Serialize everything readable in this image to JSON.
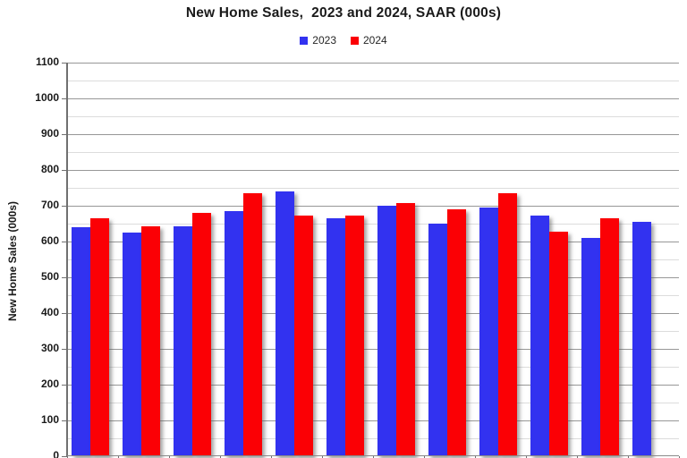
{
  "title": "New Home Sales,  2023 and 2024, SAAR (000s)",
  "legend": {
    "items": [
      {
        "label": "2023",
        "color": "#3232F0"
      },
      {
        "label": "2024",
        "color": "#FB0005"
      }
    ]
  },
  "y_axis": {
    "label": "New Home Sales (000s)",
    "tick_values": [
      0,
      100,
      200,
      300,
      400,
      500,
      600,
      700,
      800,
      900,
      1000,
      1100
    ]
  },
  "x_axis": {
    "tick_labels_visible": false,
    "boundary_tick_count": 13
  },
  "chart_data": {
    "type": "bar",
    "title": "New Home Sales,  2023 and 2024, SAAR (000s)",
    "xlabel": "",
    "ylabel": "New Home Sales (000s)",
    "ylim": [
      0,
      1100
    ],
    "y_major_step": 100,
    "y_minor_step": 50,
    "grid": "horizontal, major and minor",
    "legend_position": "top-center",
    "group_count": 12,
    "series": [
      {
        "name": "2023",
        "color": "#3232F0",
        "values": [
          640,
          624,
          643,
          686,
          741,
          666,
          699,
          650,
          694,
          672,
          611,
          654
        ]
      },
      {
        "name": "2024",
        "color": "#FB0005",
        "values": [
          664,
          643,
          681,
          735,
          672,
          673,
          707,
          690,
          735,
          627,
          665,
          null
        ]
      }
    ],
    "colors": {
      "major_gridline": "#979797",
      "minor_gridline": "#dcdcdc",
      "axis": "#707070",
      "background": "#ffffff"
    }
  }
}
